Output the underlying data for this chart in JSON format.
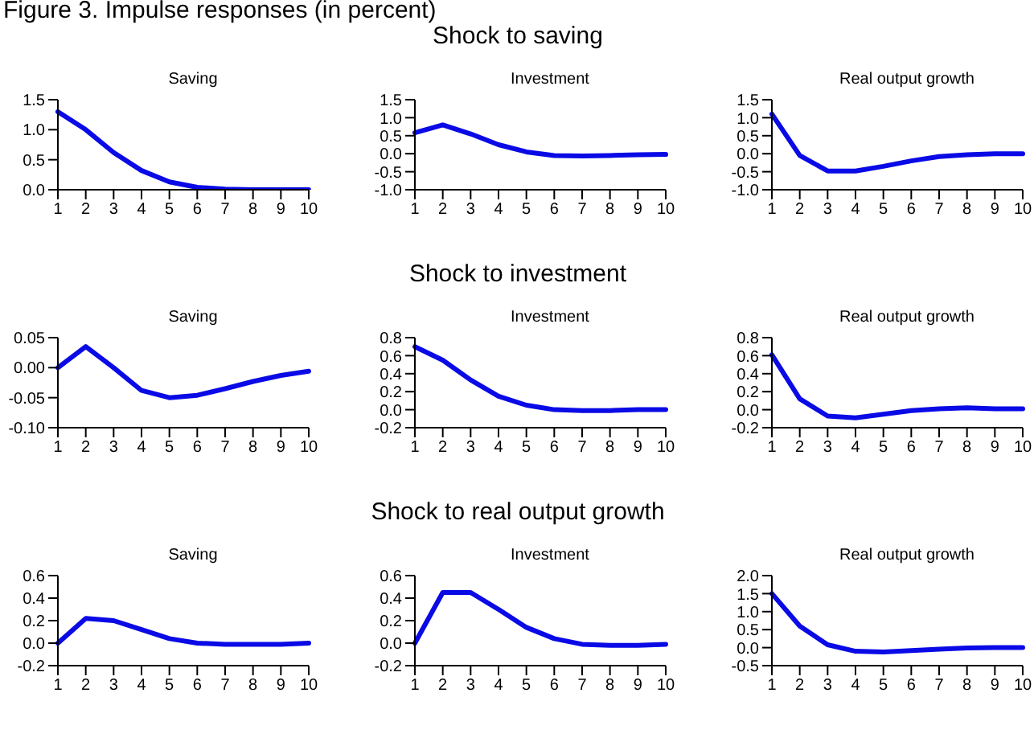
{
  "chart_data": [
    {
      "type": "line",
      "title": "Saving",
      "annotations": [
        "Figure 3.    Impulse responses (in percent)"
      ],
      "categories": [
        "1",
        "2",
        "3",
        "4",
        "5",
        "6",
        "7",
        "8",
        "9",
        "10"
      ],
      "values": [
        1.3,
        1.0,
        0.62,
        0.32,
        0.13,
        0.04,
        0.01,
        0.0,
        0.0,
        0.0
      ],
      "color": "#0a0ae6",
      "ylim": [
        0,
        1.5
      ],
      "yticks": [
        {
          "value": 0,
          "label": "0.0"
        },
        0.5,
        {
          "value": 1,
          "label": "1.0"
        },
        1.5
      ]
    },
    {
      "type": "line",
      "title": "Investment",
      "annotations": [
        "Shock to saving"
      ],
      "categories": [
        "1",
        "2",
        "3",
        "4",
        "5",
        "6",
        "7",
        "8",
        "9",
        "10"
      ],
      "values": [
        0.58,
        0.8,
        0.55,
        0.25,
        0.05,
        -0.05,
        -0.06,
        -0.05,
        -0.03,
        -0.02
      ],
      "color": "#0a0ae6",
      "ylim": [
        -1,
        1.5
      ],
      "yticks": [
        {
          "value": -1,
          "label": "-1.0"
        },
        -0.5,
        {
          "value": 0,
          "label": "0.0"
        },
        0.5,
        {
          "value": 1,
          "label": "1.0"
        },
        1.5
      ]
    },
    {
      "type": "line",
      "title": "Real output growth",
      "categories": [
        "1",
        "2",
        "3",
        "4",
        "5",
        "6",
        "7",
        "8",
        "9",
        "10"
      ],
      "values": [
        1.1,
        -0.05,
        -0.48,
        -0.48,
        -0.35,
        -0.2,
        -0.08,
        -0.03,
        0.0,
        0.0
      ],
      "color": "#0a0ae6",
      "ylim": [
        -1,
        1.5
      ],
      "yticks": [
        {
          "value": -1,
          "label": "-1.0"
        },
        -0.5,
        {
          "value": 0,
          "label": "0.0"
        },
        0.5,
        {
          "value": 1,
          "label": "1.0"
        },
        1.5
      ]
    },
    {
      "type": "line",
      "title": "Saving",
      "categories": [
        "1",
        "2",
        "3",
        "4",
        "5",
        "6",
        "7",
        "8",
        "9",
        "10"
      ],
      "values": [
        0.0,
        0.035,
        0.0,
        -0.038,
        -0.05,
        -0.046,
        -0.035,
        -0.023,
        -0.013,
        -0.006
      ],
      "color": "#0a0ae6",
      "ylim": [
        -0.1,
        0.05
      ],
      "yticks": [
        {
          "value": -0.1,
          "label": "-0.10"
        },
        -0.05,
        {
          "value": 0,
          "label": "0.00"
        },
        0.05
      ]
    },
    {
      "type": "line",
      "title": "Investment",
      "annotations": [
        "Shock to investment"
      ],
      "categories": [
        "1",
        "2",
        "3",
        "4",
        "5",
        "6",
        "7",
        "8",
        "9",
        "10"
      ],
      "values": [
        0.7,
        0.55,
        0.33,
        0.15,
        0.05,
        0.0,
        -0.01,
        -0.01,
        0.0,
        0.0
      ],
      "color": "#0a0ae6",
      "ylim": [
        -0.2,
        0.8
      ],
      "yticks": [
        -0.2,
        {
          "value": 0,
          "label": "0.0"
        },
        0.2,
        0.4,
        0.6,
        0.8
      ]
    },
    {
      "type": "line",
      "title": "Real output growth",
      "categories": [
        "1",
        "2",
        "3",
        "4",
        "5",
        "6",
        "7",
        "8",
        "9",
        "10"
      ],
      "values": [
        0.61,
        0.12,
        -0.07,
        -0.09,
        -0.05,
        -0.01,
        0.01,
        0.02,
        0.01,
        0.01
      ],
      "color": "#0a0ae6",
      "ylim": [
        -0.2,
        0.8
      ],
      "yticks": [
        -0.2,
        {
          "value": 0,
          "label": "0.0"
        },
        0.2,
        0.4,
        0.6,
        0.8
      ]
    },
    {
      "type": "line",
      "title": "Saving",
      "categories": [
        "1",
        "2",
        "3",
        "4",
        "5",
        "6",
        "7",
        "8",
        "9",
        "10"
      ],
      "values": [
        0.0,
        0.22,
        0.2,
        0.12,
        0.04,
        0.0,
        -0.01,
        -0.01,
        -0.01,
        0.0
      ],
      "color": "#0a0ae6",
      "ylim": [
        -0.2,
        0.6
      ],
      "yticks": [
        -0.2,
        {
          "value": 0,
          "label": "0.0"
        },
        0.2,
        0.4,
        0.6
      ]
    },
    {
      "type": "line",
      "title": "Investment",
      "annotations": [
        "Shock to real output growth"
      ],
      "categories": [
        "1",
        "2",
        "3",
        "4",
        "5",
        "6",
        "7",
        "8",
        "9",
        "10"
      ],
      "values": [
        0.0,
        0.45,
        0.45,
        0.3,
        0.14,
        0.04,
        -0.01,
        -0.02,
        -0.02,
        -0.01
      ],
      "color": "#0a0ae6",
      "ylim": [
        -0.2,
        0.6
      ],
      "yticks": [
        -0.2,
        {
          "value": 0,
          "label": "0.0"
        },
        0.2,
        0.4,
        0.6
      ]
    },
    {
      "type": "line",
      "title": "Real output growth",
      "categories": [
        "1",
        "2",
        "3",
        "4",
        "5",
        "6",
        "7",
        "8",
        "9",
        "10"
      ],
      "values": [
        1.5,
        0.6,
        0.08,
        -0.1,
        -0.12,
        -0.08,
        -0.04,
        -0.01,
        0.0,
        0.0
      ],
      "color": "#0a0ae6",
      "ylim": [
        -0.5,
        2
      ],
      "yticks": [
        -0.5,
        {
          "value": 0,
          "label": "0.0"
        },
        0.5,
        {
          "value": 1,
          "label": "1.0"
        },
        1.5,
        {
          "value": 2,
          "label": "2.0"
        }
      ]
    }
  ]
}
